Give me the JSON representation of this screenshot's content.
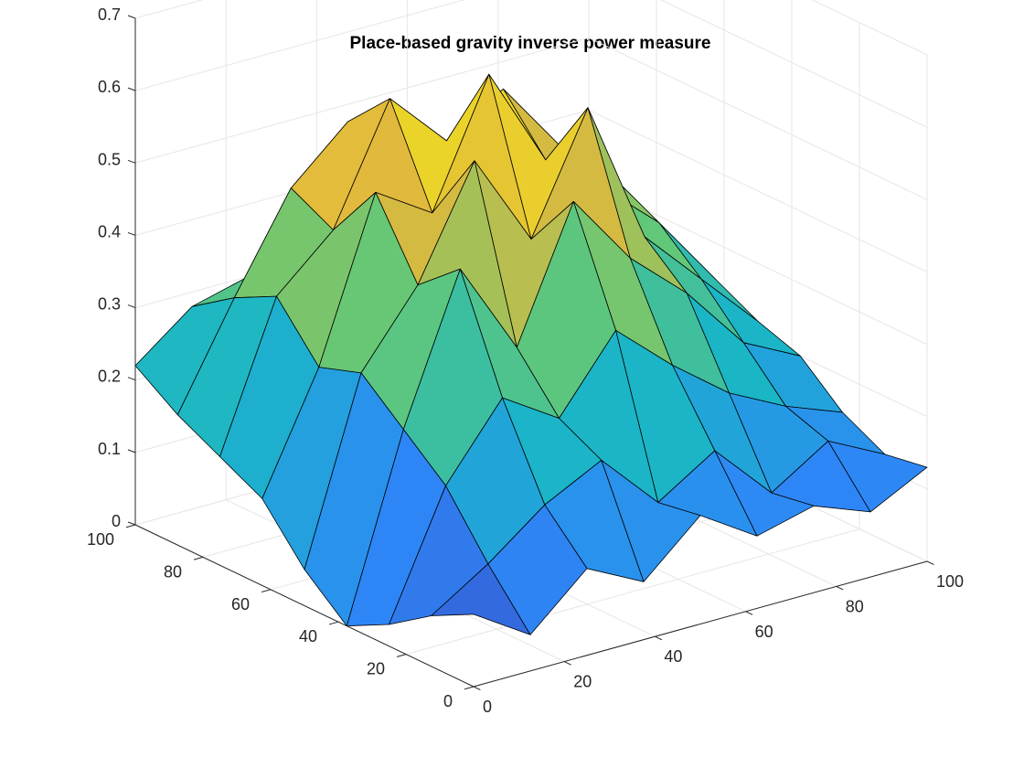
{
  "chart_data": {
    "type": "surface3d",
    "title": "Place-based gravity inverse power measure",
    "xlabel": "",
    "ylabel": "",
    "zlabel": "",
    "xlim": [
      0,
      100
    ],
    "ylim": [
      0,
      100
    ],
    "zlim": [
      0,
      0.7
    ],
    "x_ticks": [
      0,
      20,
      40,
      60,
      80,
      100
    ],
    "y_ticks": [
      0,
      20,
      40,
      60,
      80,
      100
    ],
    "z_ticks": [
      0,
      0.1,
      0.2,
      0.3,
      0.4,
      0.5,
      0.6,
      0.7
    ],
    "x_tick_labels": [
      "0",
      "20",
      "40",
      "60",
      "80",
      "100"
    ],
    "y_tick_labels": [
      "0",
      "20",
      "40",
      "60",
      "80",
      "100"
    ],
    "z_tick_labels": [
      "0",
      "0.1",
      "0.2",
      "0.3",
      "0.4",
      "0.5",
      "0.6",
      "0.7"
    ],
    "grid": true,
    "colormap": "parula",
    "x": [
      0,
      12.5,
      25,
      37.5,
      50,
      62.5,
      75,
      87.5,
      100
    ],
    "y": [
      0,
      12.5,
      25,
      37.5,
      50,
      62.5,
      75,
      87.5,
      100
    ],
    "z": [
      [
        0.1,
        0.05,
        0.12,
        0.08,
        0.15,
        0.1,
        0.12,
        0.09,
        0.13
      ],
      [
        0.07,
        0.12,
        0.18,
        0.22,
        0.14,
        0.19,
        0.11,
        0.16,
        0.12
      ],
      [
        0.03,
        0.2,
        0.3,
        0.25,
        0.35,
        0.28,
        0.22,
        0.18,
        0.15
      ],
      [
        0.0,
        0.25,
        0.45,
        0.32,
        0.5,
        0.4,
        0.33,
        0.24,
        0.2
      ],
      [
        0.05,
        0.3,
        0.4,
        0.55,
        0.42,
        0.58,
        0.38,
        0.3,
        0.22
      ],
      [
        0.12,
        0.28,
        0.5,
        0.45,
        0.62,
        0.48,
        0.42,
        0.35,
        0.25
      ],
      [
        0.15,
        0.35,
        0.42,
        0.58,
        0.5,
        0.55,
        0.45,
        0.38,
        0.28
      ],
      [
        0.18,
        0.32,
        0.45,
        0.52,
        0.47,
        0.4,
        0.36,
        0.3,
        0.24
      ],
      [
        0.22,
        0.28,
        0.3,
        0.38,
        0.35,
        0.32,
        0.3,
        0.27,
        0.21
      ]
    ],
    "colors": {
      "axis": "#262626",
      "grid": "#e6e6e6",
      "edge": "#000000",
      "colormap_stops": [
        "#3e26a8",
        "#2e87f7",
        "#1ab6c6",
        "#63c877",
        "#e1b93c",
        "#f9fb0e"
      ]
    }
  }
}
